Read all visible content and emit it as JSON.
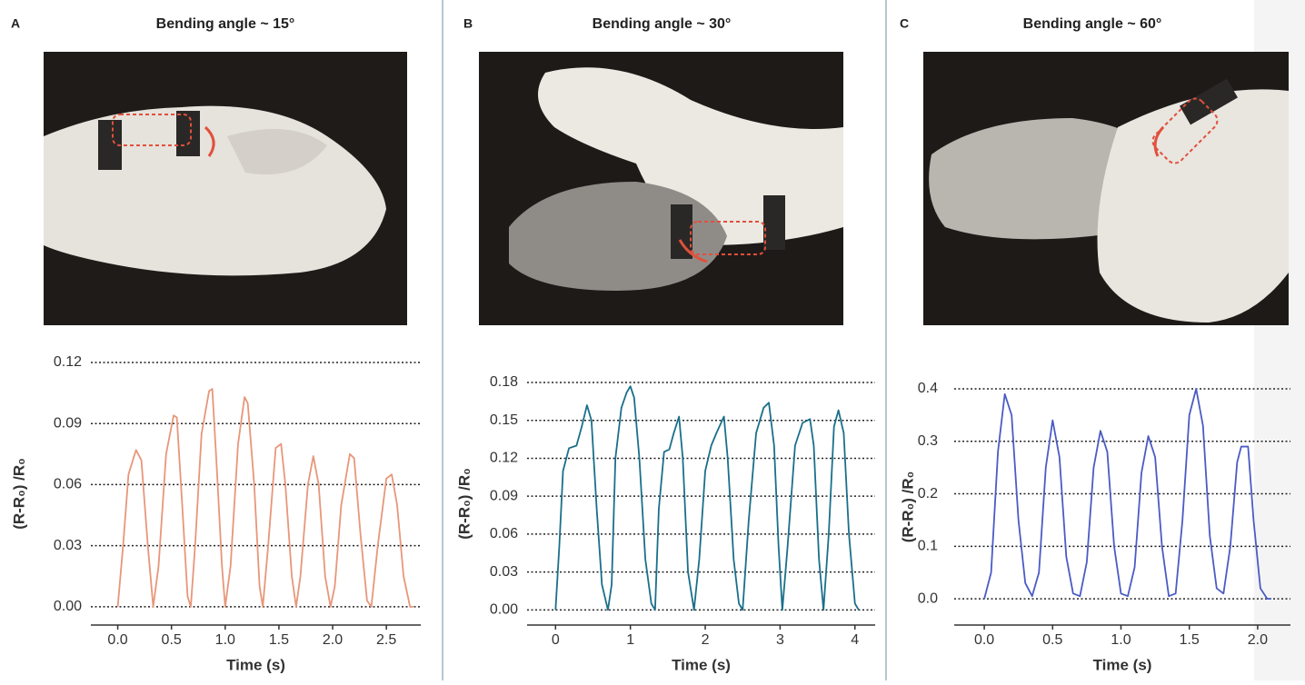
{
  "chart_data": [
    {
      "type": "line",
      "panel": "A",
      "title": "Bending angle ~ 15°",
      "xlabel": "Time (s)",
      "ylabel": "(R-R₀) /R₀",
      "color": "#e8967a",
      "grid": true,
      "xlim": [
        -0.25,
        2.82
      ],
      "ylim": [
        -0.009,
        0.12
      ],
      "xticks": [
        {
          "value": 0,
          "label": "0.0"
        },
        0.5,
        {
          "value": 1,
          "label": "1.0"
        },
        1.5,
        {
          "value": 2,
          "label": "2.0"
        },
        2.5
      ],
      "yticks": [
        {
          "value": 0,
          "label": "0.00"
        },
        0.03,
        0.06,
        0.09,
        0.12
      ],
      "x": [
        0,
        0.05,
        0.1,
        0.17,
        0.22,
        0.28,
        0.33,
        0.38,
        0.45,
        0.52,
        0.55,
        0.6,
        0.65,
        0.68,
        0.72,
        0.78,
        0.85,
        0.88,
        0.92,
        0.97,
        1.0,
        1.05,
        1.12,
        1.18,
        1.21,
        1.27,
        1.32,
        1.35,
        1.4,
        1.47,
        1.52,
        1.56,
        1.62,
        1.66,
        1.7,
        1.77,
        1.82,
        1.87,
        1.93,
        1.98,
        2.02,
        2.08,
        2.16,
        2.2,
        2.26,
        2.32,
        2.36,
        2.42,
        2.5,
        2.55,
        2.6,
        2.66,
        2.72,
        2.75
      ],
      "values": [
        0,
        0.03,
        0.065,
        0.077,
        0.072,
        0.03,
        0,
        0.02,
        0.075,
        0.094,
        0.093,
        0.05,
        0.005,
        0,
        0.03,
        0.085,
        0.106,
        0.107,
        0.07,
        0.02,
        0,
        0.02,
        0.08,
        0.103,
        0.1,
        0.06,
        0.01,
        0,
        0.03,
        0.078,
        0.08,
        0.06,
        0.015,
        0,
        0.015,
        0.06,
        0.074,
        0.06,
        0.015,
        0,
        0.01,
        0.05,
        0.075,
        0.073,
        0.035,
        0.003,
        0,
        0.03,
        0.063,
        0.065,
        0.05,
        0.015,
        0,
        0
      ]
    },
    {
      "type": "line",
      "panel": "B",
      "title": "Bending angle ~ 30°",
      "xlabel": "Time (s)",
      "ylabel": "(R-R₀) /R₀",
      "color": "#1a6f8a",
      "grid": true,
      "xlim": [
        -0.38,
        4.27
      ],
      "ylim": [
        -0.012,
        0.18
      ],
      "xticks": [
        0,
        1,
        2,
        3,
        4
      ],
      "yticks": [
        {
          "value": 0,
          "label": "0.00"
        },
        0.03,
        0.06,
        0.09,
        0.12,
        0.15,
        0.18
      ],
      "x": [
        0,
        0.05,
        0.1,
        0.18,
        0.28,
        0.35,
        0.42,
        0.48,
        0.55,
        0.62,
        0.7,
        0.75,
        0.8,
        0.88,
        0.95,
        1.0,
        1.05,
        1.12,
        1.2,
        1.28,
        1.33,
        1.38,
        1.45,
        1.52,
        1.58,
        1.65,
        1.7,
        1.77,
        1.85,
        1.92,
        2.0,
        2.08,
        2.15,
        2.25,
        2.3,
        2.38,
        2.45,
        2.5,
        2.58,
        2.68,
        2.78,
        2.85,
        2.92,
        2.98,
        3.03,
        3.1,
        3.2,
        3.3,
        3.4,
        3.45,
        3.52,
        3.58,
        3.65,
        3.72,
        3.78,
        3.85,
        3.92,
        4.0,
        4.05
      ],
      "values": [
        0,
        0.05,
        0.11,
        0.128,
        0.13,
        0.145,
        0.162,
        0.15,
        0.08,
        0.02,
        0,
        0.02,
        0.12,
        0.16,
        0.172,
        0.177,
        0.168,
        0.12,
        0.04,
        0.005,
        0,
        0.08,
        0.125,
        0.127,
        0.14,
        0.153,
        0.12,
        0.03,
        0,
        0.04,
        0.11,
        0.13,
        0.14,
        0.153,
        0.12,
        0.04,
        0.005,
        0,
        0.07,
        0.14,
        0.16,
        0.164,
        0.13,
        0.05,
        0,
        0.05,
        0.13,
        0.148,
        0.151,
        0.13,
        0.04,
        0,
        0.06,
        0.145,
        0.158,
        0.14,
        0.06,
        0.005,
        0
      ]
    },
    {
      "type": "line",
      "panel": "C",
      "title": "Bending angle ~ 60°",
      "xlabel": "Time (s)",
      "ylabel": "(R-R₀) /R₀",
      "color": "#4a5bc4",
      "grid": true,
      "xlim": [
        -0.22,
        2.24
      ],
      "ylim": [
        -0.05,
        0.4
      ],
      "xticks": [
        {
          "value": 0,
          "label": "0.0"
        },
        0.5,
        {
          "value": 1,
          "label": "1.0"
        },
        1.5,
        {
          "value": 2,
          "label": "2.0"
        }
      ],
      "yticks": [
        {
          "value": 0,
          "label": "0.0"
        },
        0.1,
        0.2,
        0.3,
        0.4
      ],
      "x": [
        0,
        0.05,
        0.1,
        0.15,
        0.2,
        0.25,
        0.3,
        0.35,
        0.4,
        0.45,
        0.5,
        0.55,
        0.6,
        0.65,
        0.7,
        0.75,
        0.8,
        0.85,
        0.9,
        0.95,
        1.0,
        1.05,
        1.1,
        1.15,
        1.2,
        1.25,
        1.3,
        1.35,
        1.4,
        1.45,
        1.5,
        1.55,
        1.6,
        1.65,
        1.7,
        1.75,
        1.8,
        1.85,
        1.88,
        1.93,
        1.97,
        2.02,
        2.07,
        2.1
      ],
      "values": [
        0,
        0.05,
        0.28,
        0.39,
        0.35,
        0.15,
        0.03,
        0.005,
        0.05,
        0.25,
        0.34,
        0.27,
        0.08,
        0.01,
        0.005,
        0.07,
        0.25,
        0.32,
        0.28,
        0.1,
        0.01,
        0.005,
        0.06,
        0.24,
        0.31,
        0.27,
        0.1,
        0.005,
        0.01,
        0.15,
        0.35,
        0.4,
        0.33,
        0.12,
        0.02,
        0.01,
        0.1,
        0.26,
        0.29,
        0.29,
        0.15,
        0.02,
        0,
        0
      ]
    }
  ]
}
